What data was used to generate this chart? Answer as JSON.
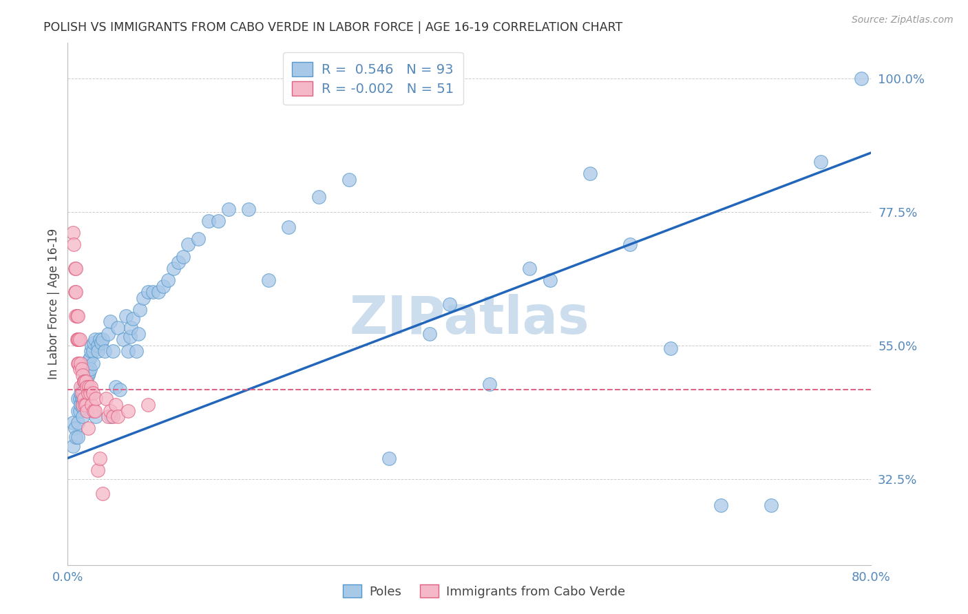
{
  "title": "POLISH VS IMMIGRANTS FROM CABO VERDE IN LABOR FORCE | AGE 16-19 CORRELATION CHART",
  "source": "Source: ZipAtlas.com",
  "ylabel": "In Labor Force | Age 16-19",
  "xlim": [
    0.0,
    0.8
  ],
  "ylim": [
    0.18,
    1.06
  ],
  "yticks": [
    0.325,
    0.55,
    0.775,
    1.0
  ],
  "ytick_labels": [
    "32.5%",
    "55.0%",
    "77.5%",
    "100.0%"
  ],
  "xticks": [
    0.0,
    0.1,
    0.2,
    0.3,
    0.4,
    0.5,
    0.6,
    0.7,
    0.8
  ],
  "xtick_labels": [
    "0.0%",
    "",
    "",
    "",
    "",
    "",
    "",
    "",
    "80.0%"
  ],
  "blue_R": 0.546,
  "blue_N": 93,
  "pink_R": -0.002,
  "pink_N": 51,
  "blue_color": "#a8c8e8",
  "blue_edge_color": "#5599cc",
  "pink_color": "#f5b8c8",
  "pink_edge_color": "#e06080",
  "trend_blue_color": "#2266bb",
  "trend_pink_color": "#dd6688",
  "title_color": "#333333",
  "tick_color": "#5588bb",
  "grid_color": "#cccccc",
  "watermark": "ZIPatlas",
  "watermark_color": "#ccdded",
  "blue_x": [
    0.005,
    0.005,
    0.007,
    0.008,
    0.01,
    0.01,
    0.01,
    0.01,
    0.012,
    0.012,
    0.013,
    0.013,
    0.014,
    0.015,
    0.015,
    0.015,
    0.015,
    0.016,
    0.016,
    0.017,
    0.017,
    0.018,
    0.018,
    0.018,
    0.019,
    0.019,
    0.02,
    0.02,
    0.021,
    0.021,
    0.022,
    0.022,
    0.023,
    0.024,
    0.025,
    0.025,
    0.026,
    0.027,
    0.028,
    0.03,
    0.03,
    0.032,
    0.033,
    0.035,
    0.037,
    0.04,
    0.042,
    0.043,
    0.045,
    0.048,
    0.05,
    0.052,
    0.055,
    0.058,
    0.06,
    0.062,
    0.063,
    0.065,
    0.068,
    0.07,
    0.072,
    0.075,
    0.08,
    0.085,
    0.09,
    0.095,
    0.1,
    0.105,
    0.11,
    0.115,
    0.12,
    0.13,
    0.14,
    0.15,
    0.16,
    0.18,
    0.2,
    0.22,
    0.25,
    0.28,
    0.32,
    0.36,
    0.38,
    0.42,
    0.46,
    0.48,
    0.52,
    0.56,
    0.6,
    0.65,
    0.7,
    0.75,
    0.79
  ],
  "blue_y": [
    0.38,
    0.42,
    0.41,
    0.395,
    0.46,
    0.44,
    0.42,
    0.395,
    0.46,
    0.44,
    0.45,
    0.47,
    0.46,
    0.48,
    0.46,
    0.445,
    0.43,
    0.49,
    0.47,
    0.5,
    0.48,
    0.51,
    0.49,
    0.47,
    0.51,
    0.495,
    0.515,
    0.5,
    0.525,
    0.505,
    0.53,
    0.51,
    0.54,
    0.55,
    0.54,
    0.52,
    0.555,
    0.56,
    0.43,
    0.55,
    0.54,
    0.56,
    0.555,
    0.56,
    0.54,
    0.57,
    0.59,
    0.43,
    0.54,
    0.48,
    0.58,
    0.475,
    0.56,
    0.6,
    0.54,
    0.565,
    0.58,
    0.595,
    0.54,
    0.57,
    0.61,
    0.63,
    0.64,
    0.64,
    0.64,
    0.65,
    0.66,
    0.68,
    0.69,
    0.7,
    0.72,
    0.73,
    0.76,
    0.76,
    0.78,
    0.78,
    0.66,
    0.75,
    0.8,
    0.83,
    0.36,
    0.57,
    0.62,
    0.485,
    0.68,
    0.66,
    0.84,
    0.72,
    0.545,
    0.28,
    0.28,
    0.86,
    1.0
  ],
  "pink_x": [
    0.005,
    0.006,
    0.007,
    0.007,
    0.008,
    0.008,
    0.008,
    0.009,
    0.009,
    0.01,
    0.01,
    0.01,
    0.011,
    0.011,
    0.012,
    0.012,
    0.013,
    0.013,
    0.014,
    0.014,
    0.015,
    0.015,
    0.016,
    0.016,
    0.017,
    0.017,
    0.018,
    0.018,
    0.019,
    0.019,
    0.02,
    0.02,
    0.021,
    0.022,
    0.023,
    0.024,
    0.025,
    0.026,
    0.027,
    0.028,
    0.03,
    0.032,
    0.035,
    0.038,
    0.04,
    0.042,
    0.045,
    0.048,
    0.05,
    0.06,
    0.08
  ],
  "pink_y": [
    0.74,
    0.72,
    0.68,
    0.64,
    0.68,
    0.64,
    0.6,
    0.6,
    0.56,
    0.6,
    0.56,
    0.52,
    0.56,
    0.52,
    0.56,
    0.51,
    0.52,
    0.48,
    0.51,
    0.47,
    0.5,
    0.45,
    0.49,
    0.46,
    0.49,
    0.45,
    0.49,
    0.45,
    0.48,
    0.44,
    0.47,
    0.41,
    0.48,
    0.47,
    0.48,
    0.45,
    0.47,
    0.44,
    0.44,
    0.46,
    0.34,
    0.36,
    0.3,
    0.46,
    0.43,
    0.44,
    0.43,
    0.45,
    0.43,
    0.44,
    0.45
  ],
  "blue_trend_x": [
    0.0,
    0.8
  ],
  "blue_trend_y": [
    0.36,
    0.875
  ],
  "pink_trend_y": 0.475
}
